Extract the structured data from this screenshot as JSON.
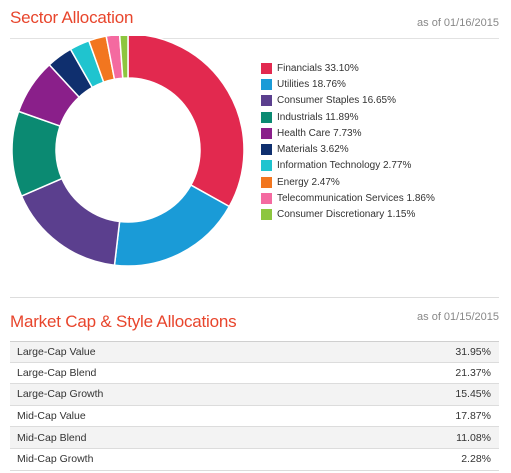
{
  "sector": {
    "title": "Sector Allocation",
    "as_of": "as of 01/16/2015"
  },
  "market_cap": {
    "title": "Market Cap & Style Allocations",
    "as_of": "as of 01/15/2015",
    "rows": [
      {
        "label": "Large-Cap Value",
        "value": "31.95%"
      },
      {
        "label": "Large-Cap Blend",
        "value": "21.37%"
      },
      {
        "label": "Large-Cap Growth",
        "value": "15.45%"
      },
      {
        "label": "Mid-Cap Value",
        "value": "17.87%"
      },
      {
        "label": "Mid-Cap Blend",
        "value": "11.08%"
      },
      {
        "label": "Mid-Cap Growth",
        "value": "2.28%"
      }
    ]
  },
  "chart_data": {
    "type": "pie",
    "title": "",
    "categories": [
      "Financials",
      "Utilities",
      "Consumer Staples",
      "Industrials",
      "Health Care",
      "Materials",
      "Information Technology",
      "Energy",
      "Telecommunication Services",
      "Consumer Discretionary"
    ],
    "values": [
      33.1,
      18.76,
      16.65,
      11.89,
      7.73,
      3.62,
      2.77,
      2.47,
      1.86,
      1.15
    ],
    "legend_labels": [
      "Financials 33.10%",
      "Utilities 18.76%",
      "Consumer Staples 16.65%",
      "Industrials 11.89%",
      "Health Care 7.73%",
      "Materials 3.62%",
      "Information Technology 2.77%",
      "Energy 2.47%",
      "Telecommunication Services 1.86%",
      "Consumer Discretionary 1.15%"
    ],
    "colors": [
      "#e2294f",
      "#1a9bd7",
      "#5b3f8e",
      "#0b8a72",
      "#8a1f8a",
      "#0f2f6e",
      "#1fc4cf",
      "#f2761f",
      "#f46aa0",
      "#8dc63f"
    ],
    "legend_position": "right",
    "donut": true
  }
}
